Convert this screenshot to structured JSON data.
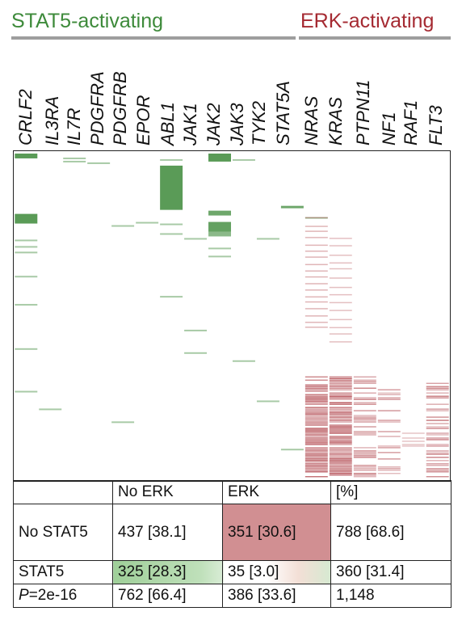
{
  "groups": {
    "stat5": {
      "label": "STAT5-activating",
      "color": "#3d8a3a"
    },
    "erk": {
      "label": "ERK-activating",
      "color": "#a52a32"
    }
  },
  "genes": {
    "stat5": [
      "CRLF2",
      "IL3RA",
      "IL7R",
      "PDGFRA",
      "PDGFRB",
      "EPOR",
      "ABL1",
      "JAK1",
      "JAK2",
      "JAK3",
      "TYK2",
      "STAT5A"
    ],
    "erk": [
      "NRAS",
      "KRAS",
      "PTPN11",
      "NF1",
      "RAF1",
      "FLT3"
    ]
  },
  "chart_data": {
    "type": "table",
    "columns": [
      "",
      "No ERK",
      "ERK",
      "[%]"
    ],
    "rows": [
      {
        "label": "No STAT5",
        "no_erk": "437 [38.1]",
        "erk": "351 [30.6]",
        "total": "788 [68.6]"
      },
      {
        "label": "STAT5",
        "no_erk": "325 [28.3]",
        "erk": "35 [3.0]",
        "total": "360 [31.4]"
      },
      {
        "label": "P=2e-16",
        "label_prefix": "P",
        "label_suffix": "=2e-16",
        "no_erk": "762 [66.4]",
        "erk": "386 [33.6]",
        "total": "1,148"
      }
    ]
  }
}
